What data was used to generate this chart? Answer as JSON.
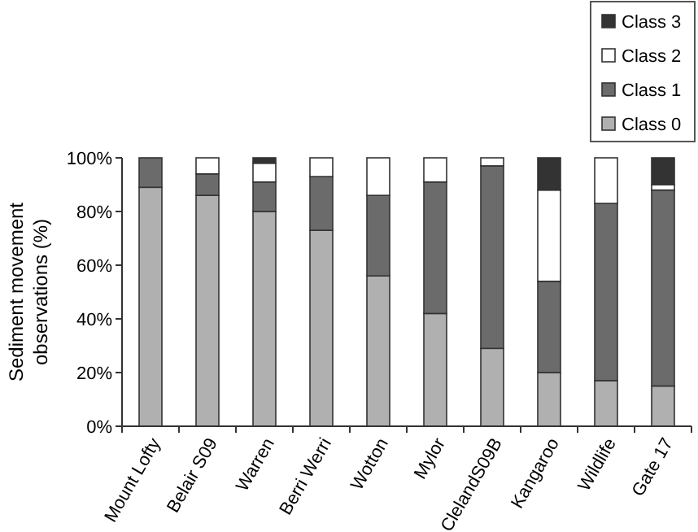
{
  "chart_data": {
    "type": "bar",
    "stacked": true,
    "ylabel": "Sediment movement observations (%)",
    "categories": [
      "Mount Lofty",
      "Belair S09",
      "Warren",
      "Berri Werri",
      "Wotton",
      "Mylor",
      "ClelandS09B",
      "Kangaroo",
      "Wildlife",
      "Gate 17"
    ],
    "series": [
      {
        "name": "Class 0",
        "color": "#b0b0b0",
        "values": [
          89,
          86,
          80,
          73,
          56,
          42,
          29,
          20,
          17,
          15
        ]
      },
      {
        "name": "Class 1",
        "color": "#6b6b6b",
        "values": [
          11,
          8,
          11,
          20,
          30,
          49,
          68,
          34,
          66,
          73
        ]
      },
      {
        "name": "Class 2",
        "color": "#ffffff",
        "values": [
          0,
          6,
          7,
          7,
          14,
          9,
          3,
          34,
          17,
          2
        ]
      },
      {
        "name": "Class 3",
        "color": "#333333",
        "values": [
          0,
          0,
          2,
          0,
          0,
          0,
          0,
          12,
          0,
          10
        ]
      }
    ],
    "ylim": [
      0,
      100
    ],
    "yticks": [
      {
        "value": 0,
        "label": "0%"
      },
      {
        "value": 20,
        "label": "20%"
      },
      {
        "value": 40,
        "label": "40%"
      },
      {
        "value": 60,
        "label": "60%"
      },
      {
        "value": 80,
        "label": "80%"
      },
      {
        "value": 100,
        "label": "100%"
      }
    ],
    "legend": "top right",
    "grid": false
  }
}
